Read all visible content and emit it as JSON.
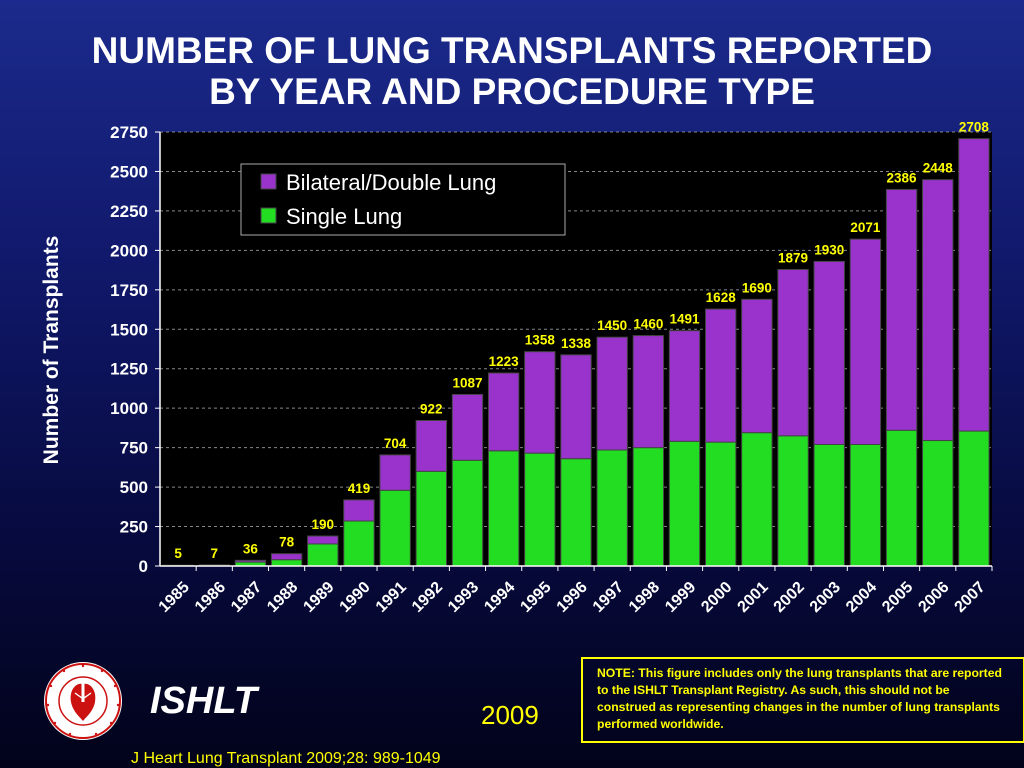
{
  "slide": {
    "title_line1": "NUMBER OF LUNG TRANSPLANTS REPORTED",
    "title_line2": "BY YEAR AND PROCEDURE TYPE",
    "org_name": "ISHLT",
    "logo_text": "INTERNATIONAL SOCIETY FOR HEART & LUNG TRANSPLANTATION",
    "year": "2009",
    "note": "NOTE: This figure includes only the lung transplants that are reported to the ISHLT Transplant Registry.  As such, this should not be construed as representing changes in the number of lung transplants performed worldwide.",
    "citation": "J Heart Lung Transplant 2009;28: 989-1049"
  },
  "chart_data": {
    "type": "bar",
    "stacked": true,
    "title": "NUMBER OF LUNG TRANSPLANTS REPORTED BY YEAR AND PROCEDURE TYPE",
    "xlabel": "",
    "ylabel": "Number of Transplants",
    "ylim": [
      0,
      2750
    ],
    "yticks": [
      0,
      250,
      500,
      750,
      1000,
      1250,
      1500,
      1750,
      2000,
      2250,
      2500,
      2750
    ],
    "grid": true,
    "legend_position": "top-left",
    "categories": [
      "1985",
      "1986",
      "1987",
      "1988",
      "1989",
      "1990",
      "1991",
      "1992",
      "1993",
      "1994",
      "1995",
      "1996",
      "1997",
      "1998",
      "1999",
      "2000",
      "2001",
      "2002",
      "2003",
      "2004",
      "2005",
      "2006",
      "2007"
    ],
    "series": [
      {
        "name": "Single Lung",
        "color": "#22dd22",
        "values": [
          0,
          5,
          25,
          40,
          140,
          285,
          480,
          600,
          670,
          730,
          715,
          680,
          735,
          750,
          790,
          785,
          845,
          825,
          770,
          770,
          860,
          795,
          855
        ]
      },
      {
        "name": "Bilateral/Double Lung",
        "color": "#9933cc",
        "values": [
          5,
          2,
          11,
          38,
          50,
          134,
          224,
          322,
          417,
          493,
          643,
          658,
          715,
          710,
          701,
          843,
          845,
          1054,
          1160,
          1301,
          1526,
          1653,
          1853
        ]
      }
    ],
    "totals": [
      5,
      7,
      36,
      78,
      190,
      419,
      704,
      922,
      1087,
      1223,
      1358,
      1338,
      1450,
      1460,
      1491,
      1628,
      1690,
      1879,
      1930,
      2071,
      2386,
      2448,
      2708
    ],
    "colors": {
      "plot_background": "#000000",
      "total_label": "#ffff00",
      "axis": "#ffffff",
      "grid": "#888888"
    }
  }
}
